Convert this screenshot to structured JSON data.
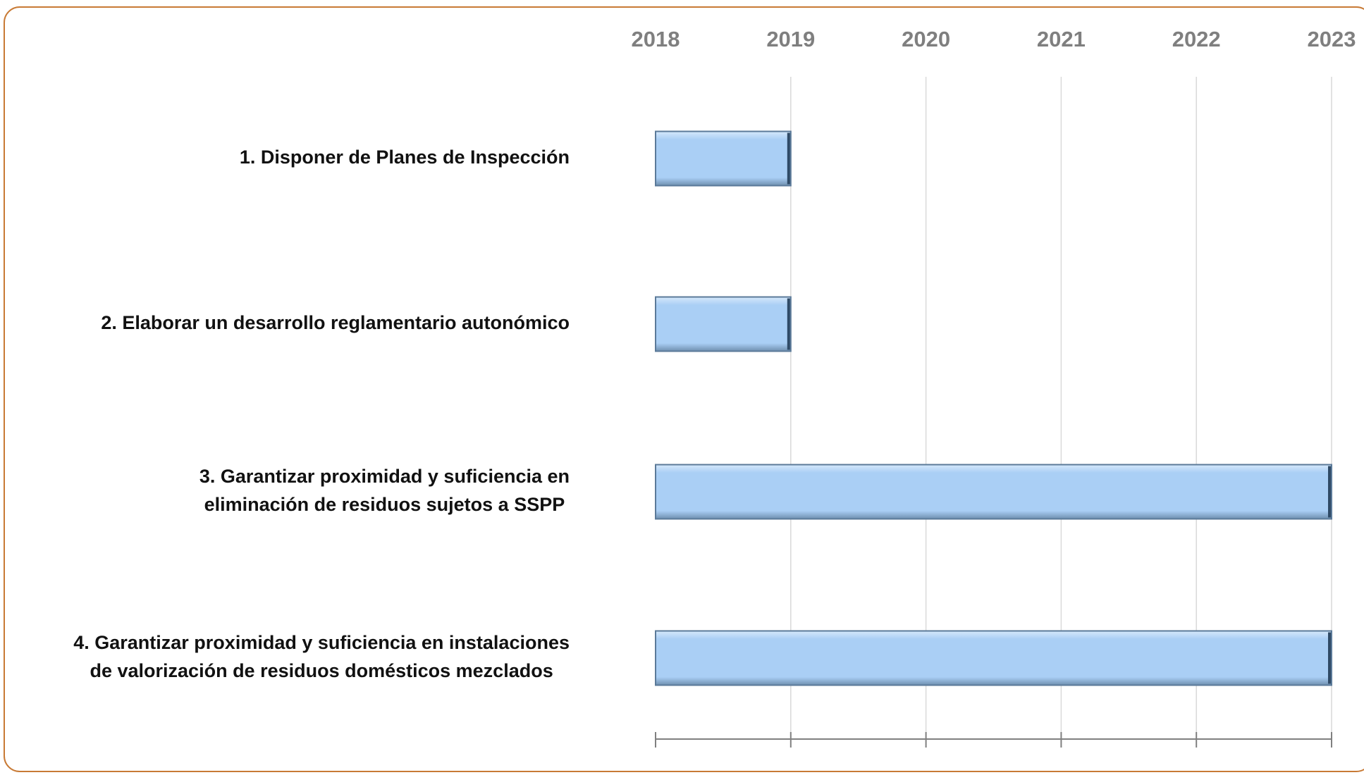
{
  "chart_data": {
    "type": "gantt",
    "categories": [
      [
        "1. Disponer de Planes de Inspección"
      ],
      [
        "2. Elaborar un desarrollo reglamentario autonómico"
      ],
      [
        "3. Garantizar proximidad y suficiencia en",
        "eliminación de residuos sujetos a SSPP"
      ],
      [
        "4. Garantizar proximidad y suficiencia en instalaciones",
        "de valorización de residuos domésticos mezclados"
      ]
    ],
    "start": [
      2018,
      2018,
      2018,
      2018
    ],
    "end": [
      2019,
      2019,
      2023,
      2023
    ],
    "color": "#aacff5",
    "xlim": [
      2018,
      2023
    ],
    "xticks": [
      2018,
      2019,
      2020,
      2021,
      2022,
      2023
    ],
    "grid": true
  }
}
